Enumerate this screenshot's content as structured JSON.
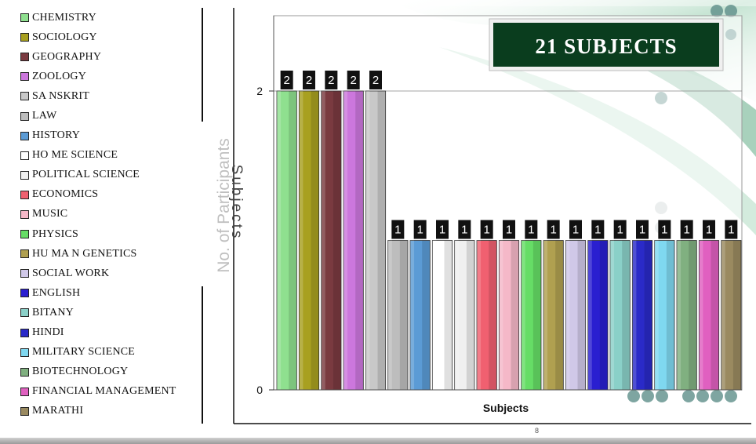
{
  "slide": {
    "page_number": "8",
    "accent_colors": [
      "#0a3d1e",
      "#7fbf9f",
      "#e8f4ec"
    ]
  },
  "chart_data": {
    "type": "bar",
    "title_box": "21 SUBJECTS",
    "xlabel": "Subjects",
    "ylabel": "No. of Participants",
    "ylabel_overlay": "Subjects",
    "ylim": [
      0,
      2
    ],
    "yticks": [
      "0",
      "2"
    ],
    "grid": true,
    "legend_position": "left",
    "categories": [
      "CHEMISTRY",
      "SOCIOLOGY",
      "GEOGRAPHY",
      "ZOOLOGY",
      "SANSKRIT",
      "LAW",
      "HISTORY",
      "HOME SCIENCE",
      "POLITICAL SCIENCE",
      "ECONOMICS",
      "MUSIC",
      "PHYSICS",
      "HUMAN GENETICS",
      "SOCIAL WORK",
      "ENGLISH",
      "BITANY",
      "HINDI",
      "MILITARY SCIENCE",
      "BIOTECHNOLOGY",
      "FINANCIAL MANAGEMENT",
      "MARATHI"
    ],
    "legend_labels": [
      "CHEMISTRY",
      "SOCIOLOGY",
      "GEOGRAPHY",
      "ZOOLOGY",
      "SA NSKRIT",
      "LAW",
      "HISTORY",
      "HO ME SCIENCE",
      "POLITICAL SCIENCE",
      "ECONOMICS",
      "MUSIC",
      "PHYSICS",
      "HU MA N GENETICS",
      "SOCIAL WORK",
      "ENGLISH",
      "BITANY",
      "HINDI",
      "MILITARY SCIENCE",
      "BIOTECHNOLOGY",
      "FINANCIAL MANAGEMENT",
      "MARATHI"
    ],
    "values": [
      2,
      2,
      2,
      2,
      2,
      1,
      1,
      1,
      1,
      1,
      1,
      1,
      1,
      1,
      1,
      1,
      1,
      1,
      1,
      1,
      1
    ],
    "colors": [
      "#8fe08f",
      "#a8a020",
      "#7a3a40",
      "#cc77dd",
      "#c8c8c8",
      "#bdbdbd",
      "#5b9bd5",
      "#ffffff",
      "#f0f0f0",
      "#f06070",
      "#f5b8c8",
      "#66dd66",
      "#b0a050",
      "#d0c8e8",
      "#2a1fd0",
      "#8ad0c8",
      "#2a2ac8",
      "#7fd8f0",
      "#80b080",
      "#e060c0",
      "#9a8a60"
    ]
  }
}
